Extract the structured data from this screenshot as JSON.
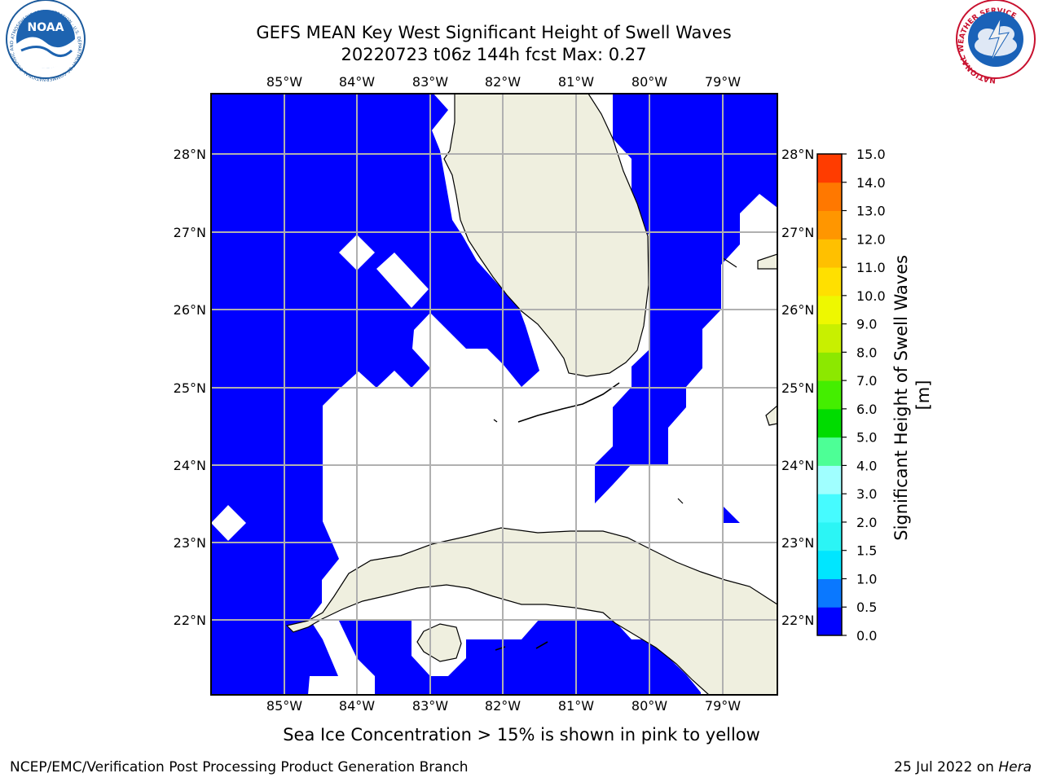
{
  "header": {
    "title_line1": "GEFS MEAN Key West Significant Height of Swell Waves",
    "title_line2": "20220723 t06z 144h fcst   Max: 0.27"
  },
  "logos": {
    "left_name": "NOAA",
    "left_ring_text": "NATIONAL OCEANIC AND ATMOSPHERIC ADMINISTRATION · U.S. DEPARTMENT OF COMMERCE",
    "right_ring_text": "NATIONAL WEATHER SERVICE"
  },
  "map": {
    "lon_labels": [
      "85°W",
      "84°W",
      "83°W",
      "82°W",
      "81°W",
      "80°W",
      "79°W"
    ],
    "lat_labels": [
      "28°N",
      "27°N",
      "26°N",
      "25°N",
      "24°N",
      "23°N",
      "22°N"
    ]
  },
  "colorbar": {
    "label": "Significant Height of Swell Waves [m]",
    "ticks": [
      "0.0",
      "0.5",
      "1.0",
      "1.5",
      "2.0",
      "3.0",
      "4.0",
      "5.0",
      "6.0",
      "7.0",
      "8.0",
      "9.0",
      "10.0",
      "11.0",
      "12.0",
      "13.0",
      "14.0",
      "15.0"
    ],
    "colors": [
      "#0000ff",
      "#0a78ff",
      "#00e6ff",
      "#2bf5f5",
      "#46fbff",
      "#a0ffff",
      "#4dff96",
      "#00dc00",
      "#44ee00",
      "#8ce800",
      "#c8f000",
      "#eef800",
      "#ffe000",
      "#ffc000",
      "#ff9600",
      "#ff7800",
      "#ff3c00",
      "#ff1400",
      "#ff0000"
    ]
  },
  "footer": {
    "note": "Sea Ice Concentration > 15% is shown in pink to yellow",
    "left": "NCEP/EMC/Verification Post Processing Product Generation Branch",
    "date": "25 Jul 2022 on ",
    "system": "Hera"
  }
}
